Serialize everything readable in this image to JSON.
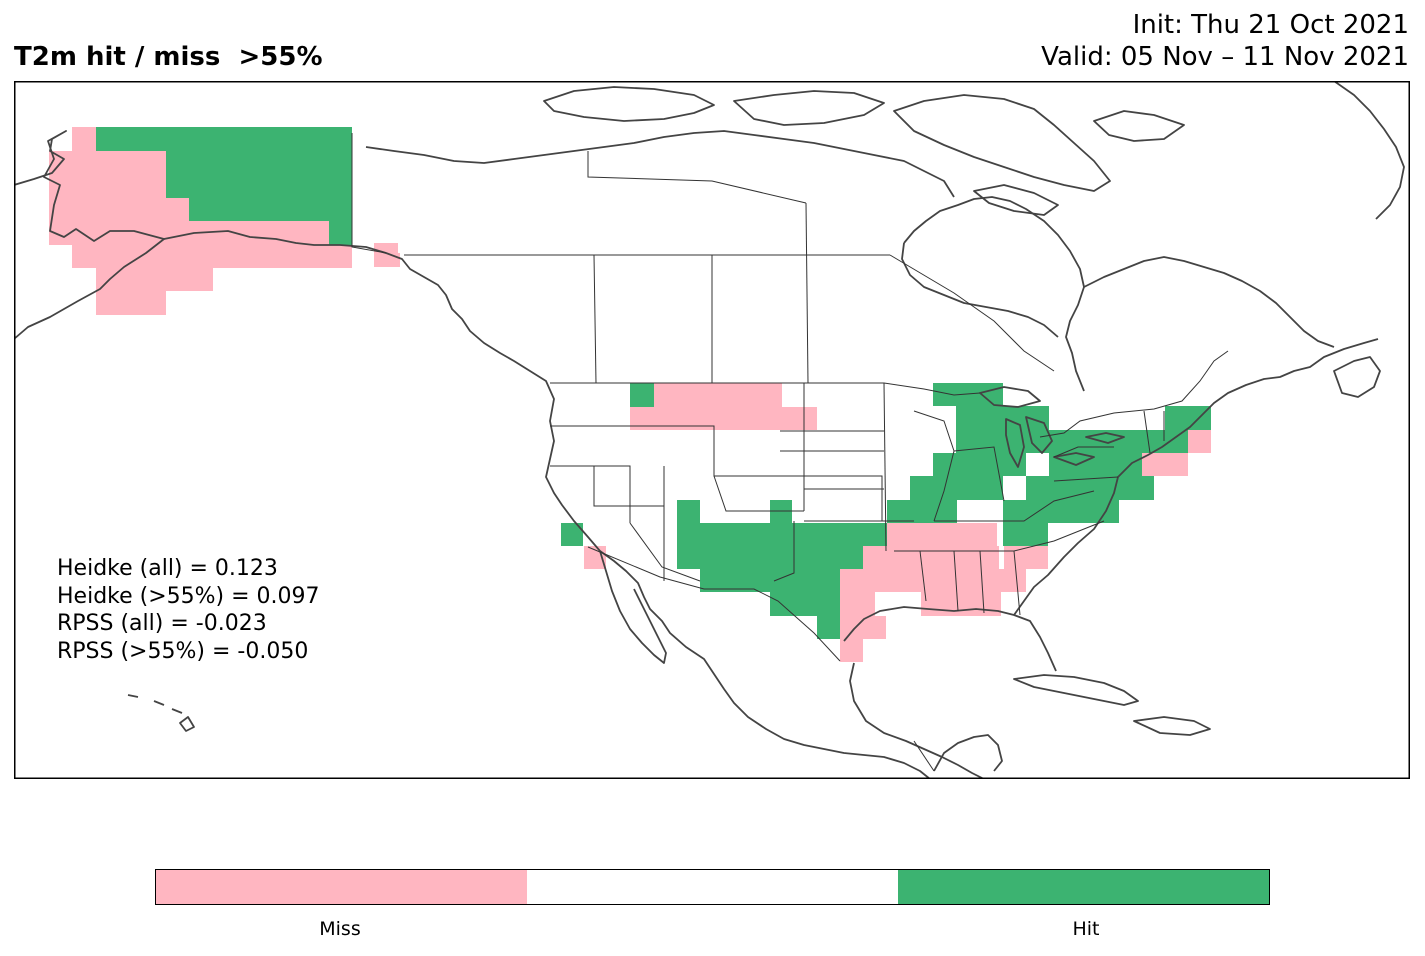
{
  "header": {
    "title": "T2m hit / miss  >55%",
    "init": "Init: Thu 21 Oct 2021",
    "valid": "Valid: 05 Nov – 11 Nov 2021"
  },
  "stats": [
    "Heidke (all) = 0.123",
    "Heidke (>55%) = 0.097",
    "RPSS (all) = -0.023",
    "RPSS (>55%) = -0.050"
  ],
  "legend": {
    "miss_label": "Miss",
    "hit_label": "Hit",
    "miss_color": "#ffb6c1",
    "neutral_color": "#ffffff",
    "hit_color": "#3cb371"
  },
  "map_colors": {
    "coastline": "#444444",
    "border": "#333333",
    "frame": "#000000"
  }
}
